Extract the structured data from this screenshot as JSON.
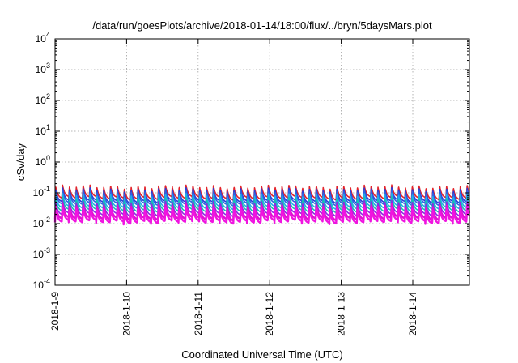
{
  "chart_data": {
    "type": "line",
    "title": "/data/run/goesPlots/archive/2018-01-14/18:00/flux/../bryn/5daysMars.plot",
    "xlabel": "Coordinated Universal Time (UTC)",
    "ylabel": "cSv/day",
    "yscale": "log",
    "ylim": [
      0.0001,
      10000
    ],
    "xlim": [
      "2018-01-09T00:00",
      "2018-01-14T19:00"
    ],
    "grid": true,
    "legend": "none",
    "y_ticks": [
      {
        "value": 0.0001,
        "base": "10",
        "exp": "-4"
      },
      {
        "value": 0.001,
        "base": "10",
        "exp": "-3"
      },
      {
        "value": 0.01,
        "base": "10",
        "exp": "-2"
      },
      {
        "value": 0.1,
        "base": "10",
        "exp": "-1"
      },
      {
        "value": 1,
        "base": "10",
        "exp": "0"
      },
      {
        "value": 10,
        "base": "10",
        "exp": "1"
      },
      {
        "value": 100,
        "base": "10",
        "exp": "2"
      },
      {
        "value": 1000,
        "base": "10",
        "exp": "3"
      },
      {
        "value": 10000,
        "base": "10",
        "exp": "4"
      }
    ],
    "x_ticks": [
      "2018-1-9",
      "2018-1-10",
      "2018-1-11",
      "2018-1-12",
      "2018-1-13",
      "2018-1-14"
    ],
    "pulse_period_hours": 2.3,
    "series": [
      {
        "color": "#e3232a",
        "peak": 0.16,
        "trough": 0.065
      },
      {
        "color": "#2a3dd8",
        "peak": 0.13,
        "trough": 0.05
      },
      {
        "color": "#2f64e0",
        "peak": 0.11,
        "trough": 0.042
      },
      {
        "color": "#1fb0e8",
        "peak": 0.085,
        "trough": 0.032
      },
      {
        "color": "#16c1b0",
        "peak": 0.065,
        "trough": 0.025
      },
      {
        "color": "#8a2be2",
        "peak": 0.05,
        "trough": 0.019
      },
      {
        "color": "#e010d0",
        "peak": 0.038,
        "trough": 0.014
      },
      {
        "color": "#f014e0",
        "peak": 0.03,
        "trough": 0.011
      }
    ]
  }
}
